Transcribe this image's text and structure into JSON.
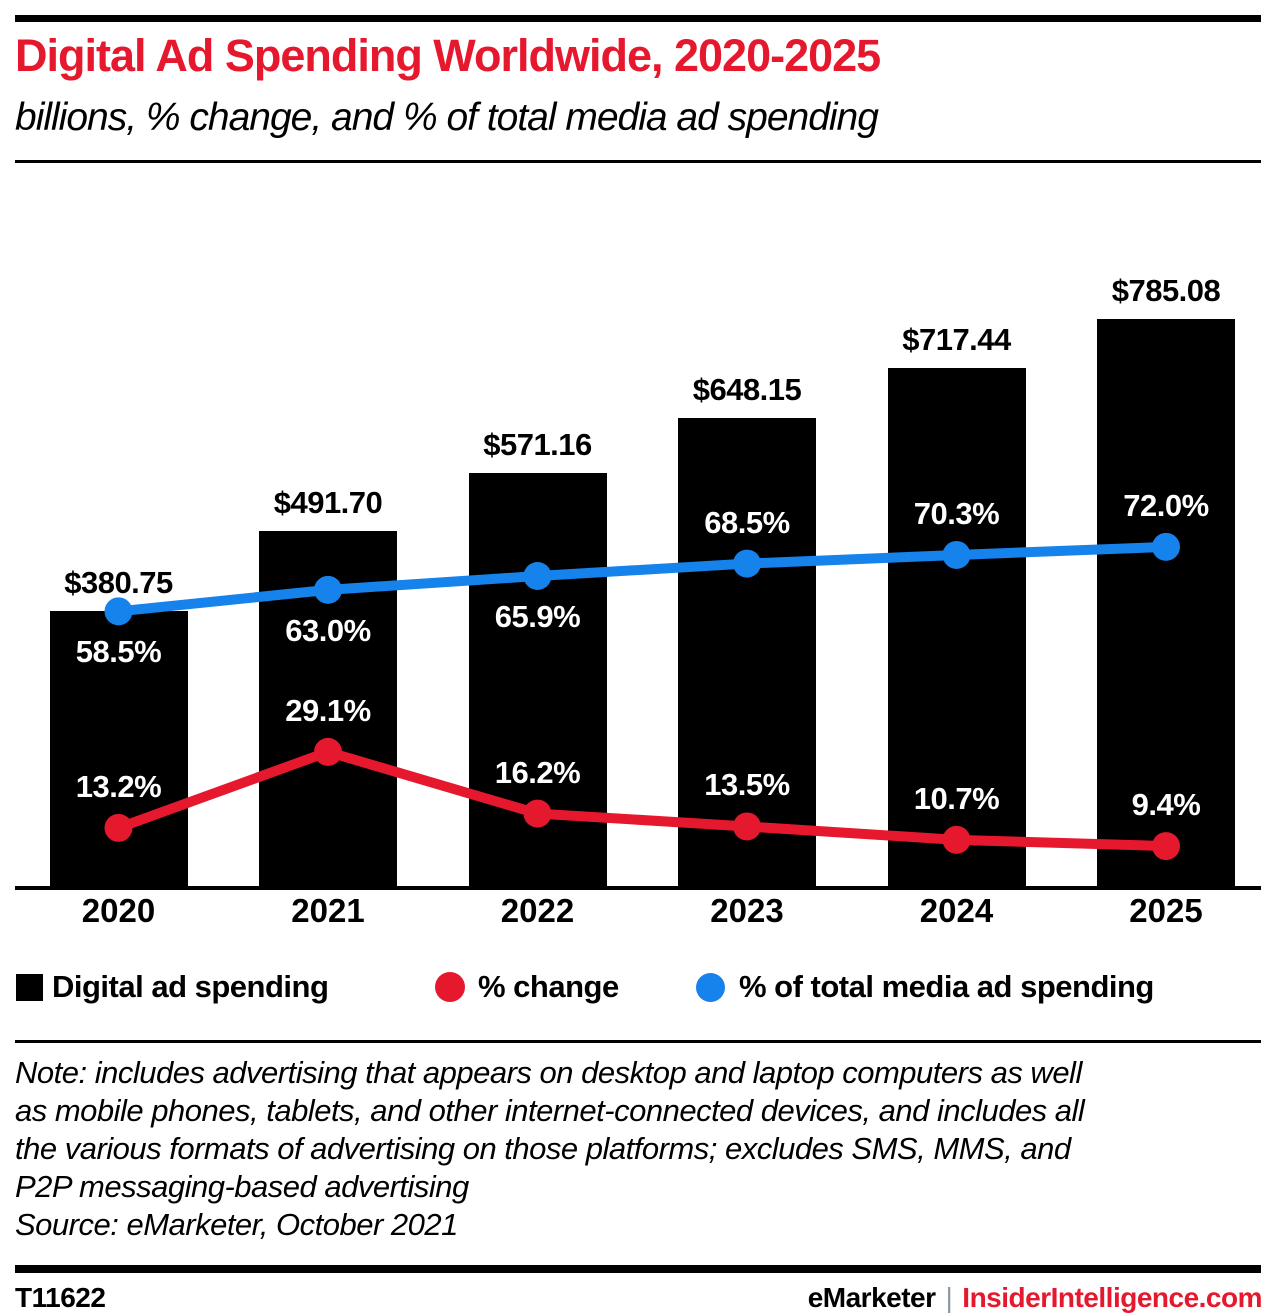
{
  "header": {
    "title": "Digital Ad Spending Worldwide, 2020-2025",
    "subtitle": "billions, % change, and % of total media ad spending"
  },
  "chart_data": {
    "type": "bar",
    "title": "Digital Ad Spending Worldwide, 2020-2025",
    "subtitle": "billions, % change, and % of total media ad spending",
    "categories": [
      "2020",
      "2021",
      "2022",
      "2023",
      "2024",
      "2025"
    ],
    "series": [
      {
        "name": "Digital ad spending",
        "type": "bar",
        "unit": "billions of US dollars",
        "color": "#000000",
        "values": [
          380.75,
          491.7,
          571.16,
          648.15,
          717.44,
          785.08
        ],
        "labels": [
          "$380.75",
          "$491.70",
          "$571.16",
          "$648.15",
          "$717.44",
          "$785.08"
        ]
      },
      {
        "name": "% change",
        "type": "line",
        "unit": "percent",
        "color": "#e6182e",
        "values": [
          13.2,
          29.1,
          16.2,
          13.5,
          10.7,
          9.4
        ],
        "labels": [
          "13.2%",
          "29.1%",
          "16.2%",
          "13.5%",
          "10.7%",
          "9.4%"
        ]
      },
      {
        "name": "% of total media ad spending",
        "type": "line",
        "unit": "percent",
        "color": "#1682ec",
        "values": [
          58.5,
          63.0,
          65.9,
          68.5,
          70.3,
          72.0
        ],
        "labels": [
          "58.5%",
          "63.0%",
          "65.9%",
          "68.5%",
          "70.3%",
          "72.0%"
        ]
      }
    ],
    "grid": false,
    "y_axis_shown": false,
    "legend_position": "bottom"
  },
  "legend": {
    "items": [
      {
        "label": "Digital ad spending",
        "color": "#000000",
        "shape": "square"
      },
      {
        "label": "% change",
        "color": "#e6182e",
        "shape": "circle"
      },
      {
        "label": "% of total media ad spending",
        "color": "#1682ec",
        "shape": "circle"
      }
    ]
  },
  "notes": {
    "lines": [
      "Note: includes advertising that appears on desktop and laptop computers as well",
      "as mobile phones, tablets, and other internet-connected devices, and includes all",
      "the various formats of advertising on those platforms; excludes SMS, MMS, and",
      "P2P messaging-based advertising"
    ],
    "source": "Source: eMarketer, October 2021"
  },
  "footer": {
    "chart_id": "T11622",
    "brand": "eMarketer",
    "separator": "|",
    "site": "InsiderIntelligence.com"
  }
}
